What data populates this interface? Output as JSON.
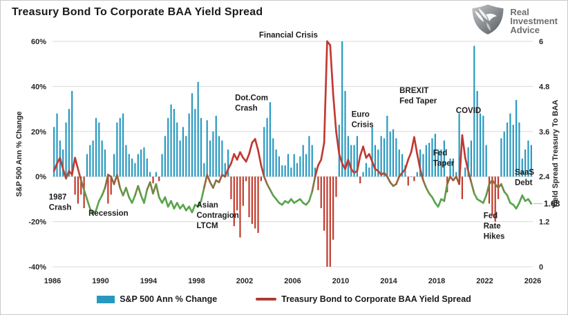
{
  "header": {
    "title": "Treasury Bond To Corporate BAA Yield Spread"
  },
  "logo": {
    "name": "Real Investment Advice",
    "lines": [
      "Real",
      "Investment",
      "Advice"
    ],
    "color": "#6d6e71"
  },
  "legend": [
    {
      "label": "S&P 500 Ann % Change",
      "color": "#2799c0",
      "type": "bar"
    },
    {
      "label": "Treasury Bond to Corporate BAA Yield Spread",
      "color": "#b03a30",
      "type": "line"
    }
  ],
  "chart_data": {
    "type": "combo",
    "title": "Treasury Bond To Corporate BAA Yield Spread",
    "grid": true,
    "grid_color": "#d9d9d9",
    "legend_position": "bottom",
    "axes": {
      "x": {
        "label": "",
        "ticks": [
          "1986",
          "1990",
          "1994",
          "1998",
          "2002",
          "2006",
          "2010",
          "2014",
          "2018",
          "2022",
          "2026"
        ],
        "tick_values": [
          1986,
          1990,
          1994,
          1998,
          2002,
          2006,
          2010,
          2014,
          2018,
          2022,
          2026
        ],
        "min": 1986,
        "max": 2026
      },
      "left": {
        "label": "S&P 500 Ann % Change",
        "ticks": [
          "60%",
          "40%",
          "20%",
          "0%",
          "-20%",
          "-40%"
        ],
        "tick_values": [
          60,
          40,
          20,
          0,
          -20,
          -40
        ],
        "min": -40,
        "max": 60
      },
      "right": {
        "label": "Yield Spread Treasury To BAA",
        "ticks": [
          "6",
          "4.8",
          "3.6",
          "2.4",
          "1.2",
          "0"
        ],
        "tick_values": [
          6,
          4.8,
          3.6,
          2.4,
          1.2,
          0
        ],
        "min": 0,
        "max": 6
      }
    },
    "series": [
      {
        "name": "S&P 500 Ann % Change",
        "type": "bar",
        "axis": "left",
        "freq": "quarterly",
        "start_year": 1986,
        "color_positive": "#2799c0",
        "color_negative": "#c0392b",
        "values": [
          22,
          28,
          16,
          12,
          24,
          30,
          38,
          -8,
          -12,
          -8,
          -14,
          10,
          14,
          16,
          26,
          24,
          16,
          12,
          -12,
          -8,
          10,
          24,
          26,
          28,
          14,
          10,
          8,
          6,
          10,
          12,
          13,
          8,
          2,
          -3,
          2,
          -2,
          10,
          18,
          26,
          32,
          30,
          24,
          16,
          22,
          18,
          28,
          37,
          30,
          42,
          26,
          6,
          25,
          16,
          20,
          27,
          18,
          16,
          6,
          12,
          -10,
          -22,
          -15,
          -27,
          -13,
          -2,
          -18,
          -21,
          -23,
          -25,
          -2,
          22,
          26,
          33,
          17,
          12,
          9,
          5,
          5,
          10,
          4,
          10,
          6,
          9,
          14,
          10,
          18,
          14,
          4,
          -6,
          -14,
          -24,
          -40,
          -40,
          -28,
          -9,
          23,
          60,
          38,
          18,
          14,
          14,
          18,
          -3,
          2,
          6,
          4,
          22,
          14,
          12,
          18,
          17,
          27,
          20,
          21,
          17,
          12,
          10,
          5,
          -4,
          0,
          -2,
          2,
          12,
          10,
          14,
          15,
          17,
          19,
          12,
          12,
          16,
          -7,
          8,
          8,
          2,
          28,
          -10,
          4,
          13,
          16,
          58,
          38,
          28,
          27,
          14,
          -12,
          -17,
          -20,
          -10,
          17,
          20,
          24,
          28,
          23,
          34,
          24,
          8,
          12,
          16,
          14
        ]
      },
      {
        "name": "Treasury Bond to Corporate BAA Yield Spread",
        "type": "line",
        "axis": "right",
        "freq": "quarterly",
        "start_year": 1986,
        "color_high": "#c13931",
        "color_low": "#5aa44e",
        "color_rule": "green below 1.9, red above 2.6, blended between",
        "values": [
          2.55,
          2.75,
          2.9,
          2.6,
          2.35,
          2.55,
          2.45,
          2.9,
          2.6,
          2.3,
          2.05,
          1.8,
          1.55,
          1.4,
          1.5,
          1.75,
          1.9,
          2.1,
          2.45,
          2.4,
          2.2,
          2.45,
          2.1,
          1.9,
          2.1,
          1.85,
          1.7,
          1.9,
          2.15,
          1.9,
          1.7,
          2.05,
          2.25,
          1.95,
          2.2,
          1.85,
          1.7,
          1.85,
          1.6,
          1.75,
          1.55,
          1.7,
          1.55,
          1.65,
          1.5,
          1.6,
          1.45,
          1.65,
          1.6,
          1.75,
          2.1,
          2.45,
          2.25,
          2.1,
          2.3,
          2.25,
          2.45,
          2.4,
          2.6,
          2.75,
          3.0,
          2.85,
          3.05,
          2.9,
          2.8,
          3.0,
          3.3,
          3.4,
          3.1,
          2.7,
          2.4,
          2.2,
          2.05,
          1.9,
          1.8,
          1.7,
          1.65,
          1.75,
          1.7,
          1.8,
          1.7,
          1.75,
          1.8,
          1.7,
          1.65,
          1.75,
          2.0,
          2.4,
          2.7,
          2.85,
          3.3,
          6.0,
          5.9,
          4.6,
          3.6,
          3.0,
          2.75,
          2.6,
          2.85,
          2.6,
          2.5,
          2.55,
          2.95,
          3.2,
          2.9,
          3.0,
          2.8,
          2.6,
          2.55,
          2.45,
          2.5,
          2.4,
          2.25,
          2.15,
          2.2,
          2.4,
          2.5,
          2.6,
          2.85,
          3.05,
          3.45,
          3.0,
          2.6,
          2.3,
          2.1,
          1.95,
          1.85,
          1.7,
          1.6,
          1.8,
          1.75,
          2.2,
          2.4,
          2.3,
          2.4,
          2.2,
          3.5,
          2.9,
          2.55,
          2.25,
          1.95,
          1.8,
          1.75,
          1.7,
          1.9,
          2.2,
          2.3,
          2.2,
          2.1,
          2.2,
          2.0,
          1.9,
          1.7,
          1.65,
          1.55,
          1.7,
          1.9,
          1.75,
          1.8,
          1.68
        ]
      }
    ],
    "annotations": [
      {
        "lines": [
          "1987",
          "Crash"
        ],
        "x": 1985.7,
        "y": 1.79
      },
      {
        "lines": [
          "Recession"
        ],
        "x": 1989.0,
        "y": 1.36
      },
      {
        "lines": [
          "Asian",
          "Contragion",
          "LTCM"
        ],
        "x": 1998.0,
        "y": 1.58
      },
      {
        "lines": [
          "Dot.Com",
          "Crash"
        ],
        "x": 2001.2,
        "y": 4.43
      },
      {
        "lines": [
          "Financial Crisis"
        ],
        "x": 2003.2,
        "y": 6.1
      },
      {
        "lines": [
          "Euro",
          "Crisis"
        ],
        "x": 2010.9,
        "y": 3.99
      },
      {
        "lines": [
          "BREXIT",
          "Fed Taper"
        ],
        "x": 2014.9,
        "y": 4.62
      },
      {
        "lines": [
          "Fed",
          "Taper"
        ],
        "x": 2017.7,
        "y": 2.96
      },
      {
        "lines": [
          "COVID"
        ],
        "x": 2019.6,
        "y": 4.09
      },
      {
        "lines": [
          "Fed",
          "Rate",
          "Hikes"
        ],
        "x": 2021.9,
        "y": 1.29
      },
      {
        "lines": [
          "SaaS",
          "Debt"
        ],
        "x": 2024.5,
        "y": 2.45
      }
    ],
    "last_value_label": "1.68",
    "last_value": 1.68
  }
}
